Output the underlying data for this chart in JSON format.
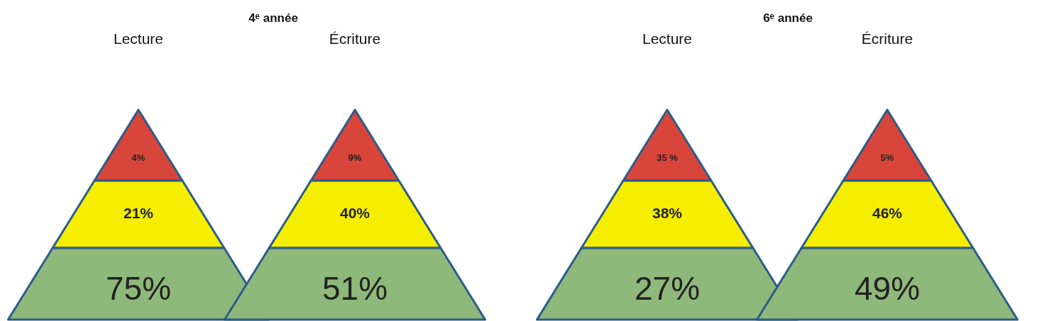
{
  "chart_data": [
    {
      "type": "other",
      "title": "4ᵉ année",
      "categories": [
        "Lecture",
        "Écriture"
      ],
      "series": [
        {
          "color": "#d8453b",
          "values": [
            4,
            9
          ],
          "value_labels": [
            "4%",
            "9%"
          ]
        },
        {
          "color": "#f6ee00",
          "values": [
            21,
            40
          ],
          "value_labels": [
            "21%",
            "40%"
          ]
        },
        {
          "color": "#8fb97b",
          "values": [
            75,
            51
          ],
          "value_labels": [
            "75%",
            "51%"
          ]
        }
      ]
    },
    {
      "type": "other",
      "title": "6ᵉ année",
      "categories": [
        "Lecture",
        "Écriture"
      ],
      "series": [
        {
          "color": "#d8453b",
          "values": [
            35,
            5
          ],
          "value_labels": [
            "35 %",
            "5%"
          ]
        },
        {
          "color": "#f6ee00",
          "values": [
            38,
            46
          ],
          "value_labels": [
            "38%",
            "46%"
          ]
        },
        {
          "color": "#8fb97b",
          "values": [
            27,
            49
          ],
          "value_labels": [
            "27%",
            "49%"
          ]
        }
      ]
    }
  ]
}
